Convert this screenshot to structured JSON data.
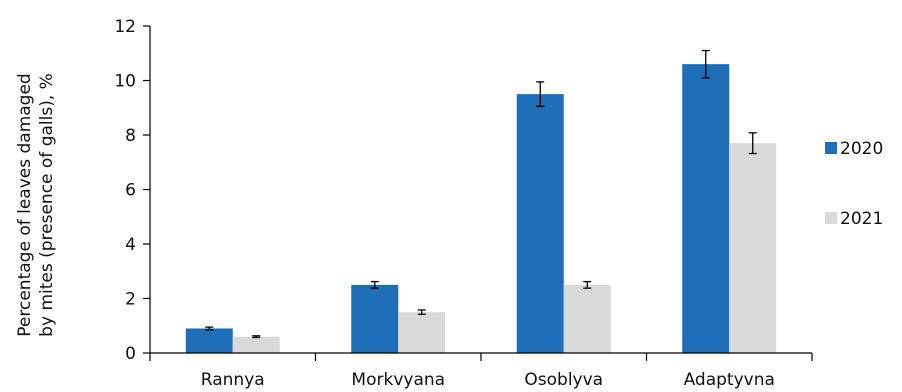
{
  "chart_data": {
    "type": "bar",
    "categories": [
      "Rannya",
      "Morkvyana",
      "Osoblyva",
      "Adaptyvna"
    ],
    "series": [
      {
        "name": "2020",
        "values": [
          0.9,
          2.5,
          9.5,
          10.6
        ],
        "errors": [
          0.05,
          0.12,
          0.45,
          0.5
        ],
        "color": "#1f6fb8"
      },
      {
        "name": "2021",
        "values": [
          0.6,
          1.5,
          2.5,
          7.7
        ],
        "errors": [
          0.03,
          0.08,
          0.12,
          0.38
        ],
        "color": "#d9d9d9"
      }
    ],
    "yticks": [
      "0",
      "2",
      "4",
      "6",
      "8",
      "10",
      "12"
    ],
    "ylim": [
      0,
      12
    ],
    "ylabel_line1": "Percentage of leaves damaged",
    "ylabel_line2": "by mites (presence of galls), %",
    "xlabel": "",
    "title": "",
    "grid": false,
    "legend_position": "right"
  }
}
